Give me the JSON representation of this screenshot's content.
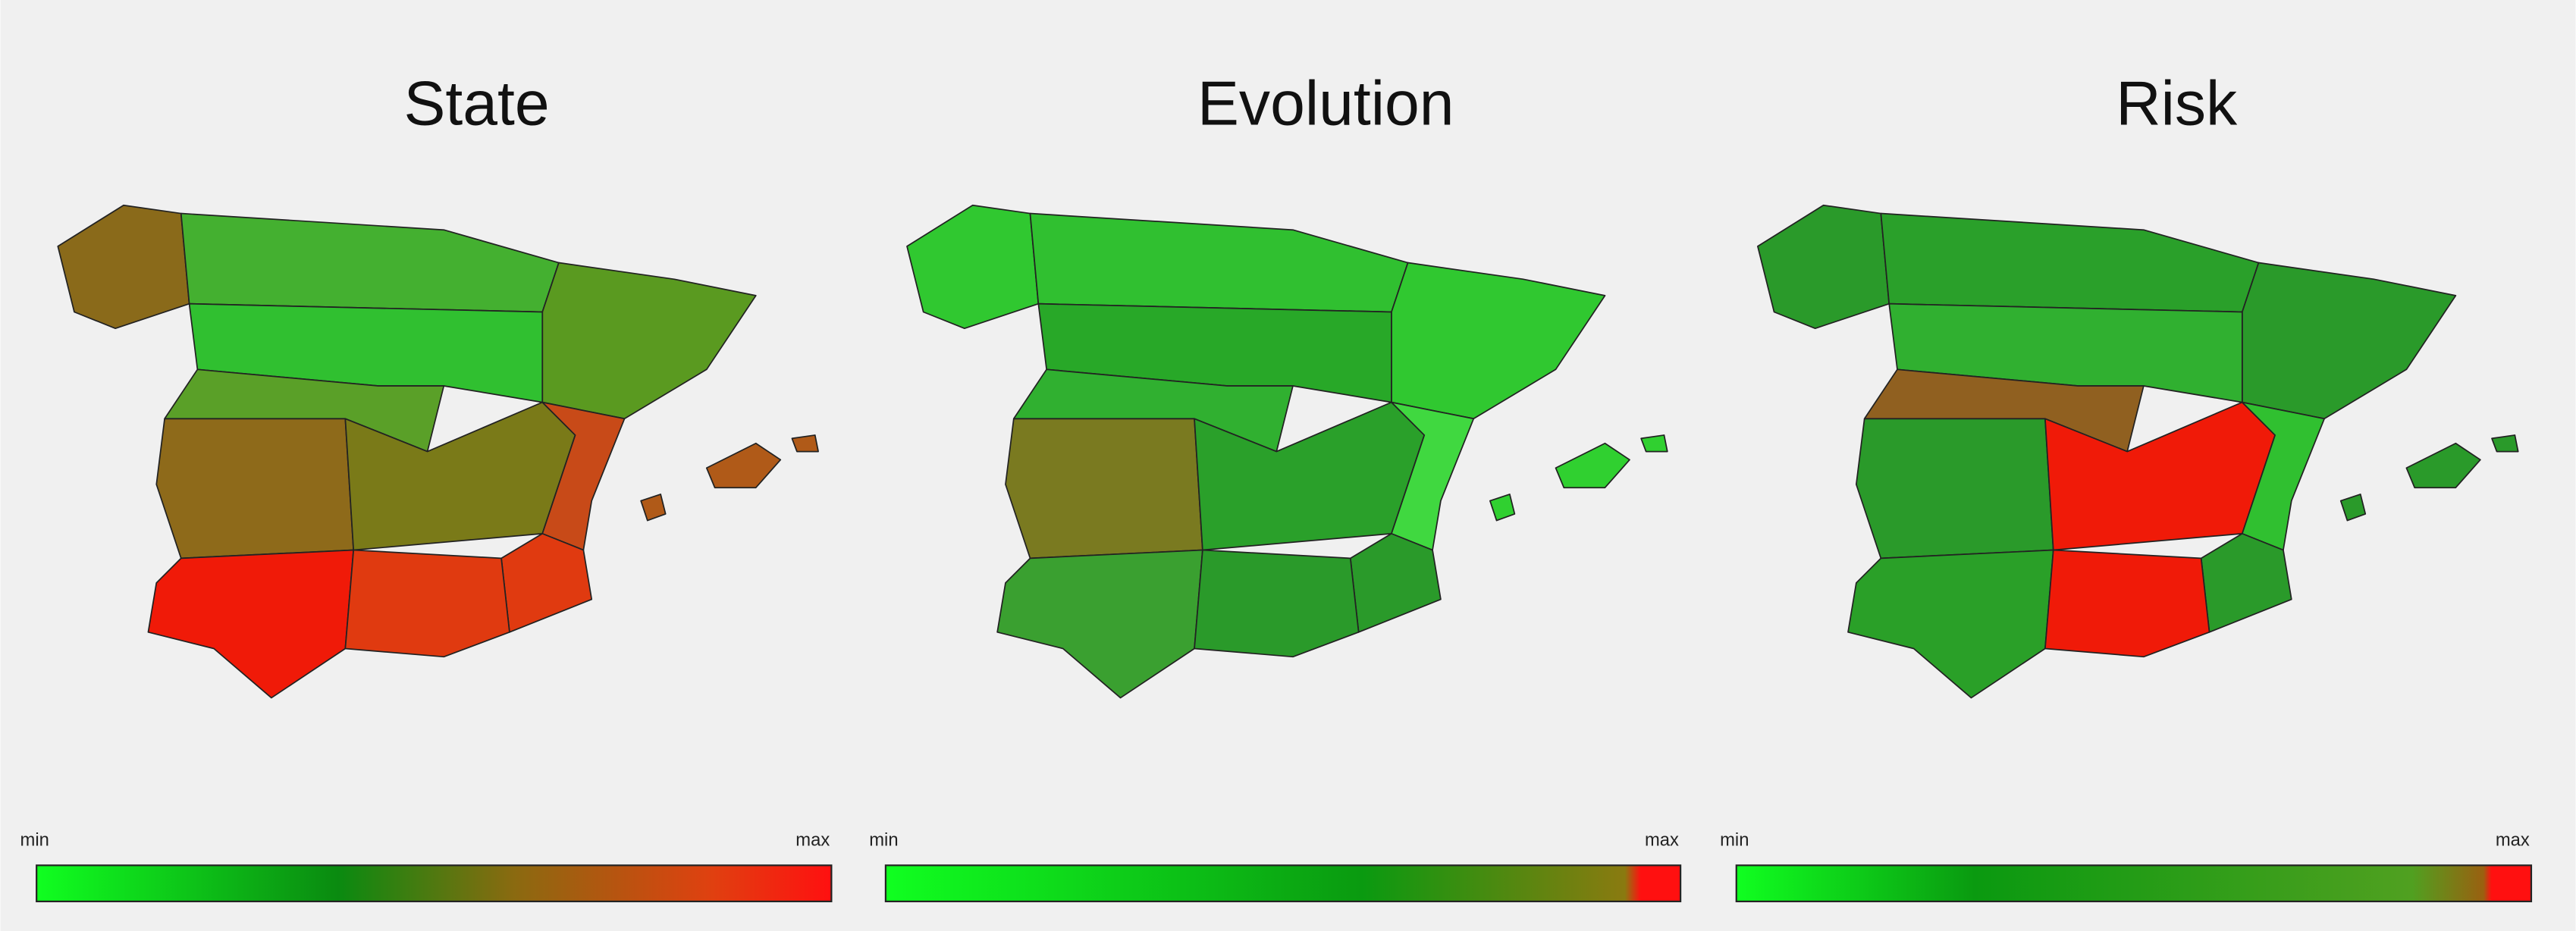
{
  "panels": [
    {
      "title": "State",
      "legend": {
        "min": "min",
        "max": "max"
      },
      "region_colors": [
        "#8a6a1a",
        "#44b030",
        "#5a9a20",
        "#30c030",
        "#8e6a1a",
        "#5aa028",
        "#7a7a18",
        "#c84a18",
        "#e03a10",
        "#f01a08",
        "#e03a10",
        "#b05a18"
      ]
    },
    {
      "title": "Evolution",
      "legend": {
        "min": "min",
        "max": "max"
      },
      "region_colors": [
        "#30c830",
        "#30c030",
        "#30c830",
        "#28a828",
        "#7a7a20",
        "#30b030",
        "#2aa02a",
        "#40d840",
        "#2a9a2a",
        "#3aa030",
        "#2a9a2a",
        "#30d030"
      ]
    },
    {
      "title": "Risk",
      "legend": {
        "min": "min",
        "max": "max"
      },
      "region_colors": [
        "#2a9a2a",
        "#2aa02a",
        "#2a9a2a",
        "#30b030",
        "#2a9a2a",
        "#906020",
        "#f01a08",
        "#30c030",
        "#2a9a2a",
        "#2aa028",
        "#f01a08",
        "#2a9a2a"
      ]
    }
  ]
}
